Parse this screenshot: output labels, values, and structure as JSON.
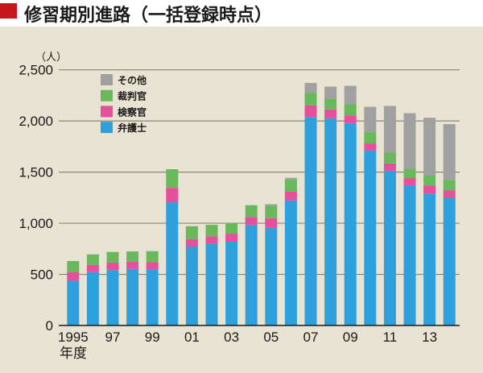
{
  "title": "修習期別進路（一括登録時点）",
  "chart_data": {
    "type": "bar",
    "stacked": true,
    "title": "修習期別進路（一括登録時点）",
    "ylabel": "（人）",
    "xlabel": "年度",
    "ylim": [
      0,
      2500
    ],
    "yticks": [
      0,
      500,
      1000,
      1500,
      2000,
      2500
    ],
    "ytick_labels": [
      "0",
      "500",
      "1,000",
      "1,500",
      "2,000",
      "2,500"
    ],
    "grid": true,
    "legend_position": "top-left",
    "categories": [
      "1995",
      "1996",
      "1997",
      "1998",
      "1999",
      "2000",
      "2001",
      "2002",
      "2003",
      "2004",
      "2005",
      "2006",
      "2007",
      "2008",
      "2009",
      "2010",
      "2011",
      "2012",
      "2013",
      "2014"
    ],
    "xtick_labels": [
      "1995",
      "",
      "97",
      "",
      "99",
      "",
      "01",
      "",
      "03",
      "",
      "05",
      "",
      "07",
      "",
      "09",
      "",
      "11",
      "",
      "13",
      ""
    ],
    "series": [
      {
        "name": "弁護士",
        "color": "#2ea1dc",
        "values": [
          438,
          522,
          541,
          554,
          549,
          1205,
          772,
          798,
          819,
          982,
          955,
          1223,
          2039,
          2026,
          1979,
          1711,
          1514,
          1370,
          1291,
          1245
        ]
      },
      {
        "name": "検察官",
        "color": "#e64f9c",
        "values": [
          84,
          71,
          73,
          71,
          70,
          141,
          73,
          74,
          79,
          79,
          95,
          87,
          113,
          87,
          74,
          69,
          71,
          71,
          79,
          78
        ]
      },
      {
        "name": "裁判官",
        "color": "#69b85b",
        "values": [
          108,
          102,
          105,
          99,
          108,
          182,
          126,
          112,
          105,
          115,
          123,
          118,
          124,
          107,
          110,
          110,
          105,
          92,
          100,
          100
        ]
      },
      {
        "name": "その他",
        "color": "#a0a0a0",
        "values": [
          0,
          0,
          0,
          0,
          0,
          0,
          0,
          0,
          0,
          0,
          13,
          16,
          96,
          116,
          181,
          249,
          457,
          543,
          561,
          546
        ]
      }
    ]
  }
}
